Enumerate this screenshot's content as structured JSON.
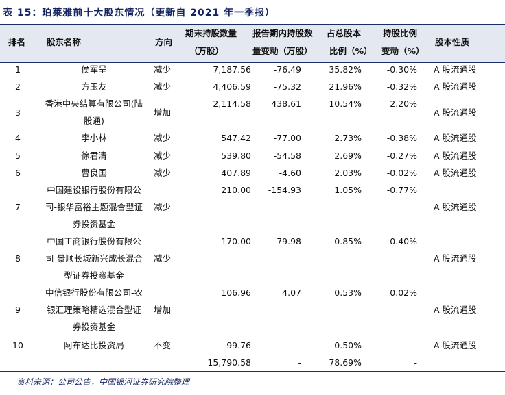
{
  "title": "表 15：珀莱雅前十大股东情况（更新自 2021 年一季报）",
  "headers": {
    "rank": "排名",
    "name": "股东名称",
    "direction": "方向",
    "qty_1": "期末持股数量",
    "qty_2": "（万股）",
    "chg_1": "报告期内持股数",
    "chg_2": "量变动（万股）",
    "pct_1": "占总股本",
    "pct_2": "比例（%）",
    "hchg_1": "持股比例",
    "hchg_2": "变动（%）",
    "type": "股本性质"
  },
  "rows": [
    {
      "rank": "1",
      "name": [
        "侯军呈"
      ],
      "direction": "减少",
      "qty": "7,187.56",
      "chg": "-76.49",
      "pct": "35.82%",
      "hchg": "-0.30%",
      "type": "A 股流通股"
    },
    {
      "rank": "2",
      "name": [
        "方玉友"
      ],
      "direction": "减少",
      "qty": "4,406.59",
      "chg": "-75.32",
      "pct": "21.96%",
      "hchg": "-0.32%",
      "type": "A 股流通股"
    },
    {
      "rank": "3",
      "name": [
        "香港中央结算有限公司(陆",
        "股通)"
      ],
      "direction": "增加",
      "qty": "2,114.58",
      "chg": "438.61",
      "pct": "10.54%",
      "hchg": "2.20%",
      "type": "A 股流通股"
    },
    {
      "rank": "4",
      "name": [
        "李小林"
      ],
      "direction": "减少",
      "qty": "547.42",
      "chg": "-77.00",
      "pct": "2.73%",
      "hchg": "-0.38%",
      "type": "A 股流通股"
    },
    {
      "rank": "5",
      "name": [
        "徐君清"
      ],
      "direction": "减少",
      "qty": "539.80",
      "chg": "-54.58",
      "pct": "2.69%",
      "hchg": "-0.27%",
      "type": "A 股流通股"
    },
    {
      "rank": "6",
      "name": [
        "曹良国"
      ],
      "direction": "减少",
      "qty": "407.89",
      "chg": "-4.60",
      "pct": "2.03%",
      "hchg": "-0.02%",
      "type": "A 股流通股"
    },
    {
      "rank": "7",
      "name": [
        "中国建设银行股份有限公",
        "司-银华富裕主题混合型证",
        "券投资基金"
      ],
      "direction": "减少",
      "qty": "210.00",
      "chg": "-154.93",
      "pct": "1.05%",
      "hchg": "-0.77%",
      "type": "A 股流通股"
    },
    {
      "rank": "8",
      "name": [
        "中国工商银行股份有限公",
        "司-景顺长城新兴成长混合",
        "型证券投资基金"
      ],
      "direction": "减少",
      "qty": "170.00",
      "chg": "-79.98",
      "pct": "0.85%",
      "hchg": "-0.40%",
      "type": "A 股流通股"
    },
    {
      "rank": "9",
      "name": [
        "中信银行股份有限公司-农",
        "银汇理策略精选混合型证",
        "券投资基金"
      ],
      "direction": "增加",
      "qty": "106.96",
      "chg": "4.07",
      "pct": "0.53%",
      "hchg": "0.02%",
      "type": "A 股流通股"
    },
    {
      "rank": "10",
      "name": [
        "阿布达比投资局"
      ],
      "direction": "不变",
      "qty": "99.76",
      "chg": "-",
      "pct": "0.50%",
      "hchg": "-",
      "type": "A 股流通股"
    }
  ],
  "total": {
    "qty": "15,790.58",
    "chg": "-",
    "pct": "78.69%",
    "hchg": "-"
  },
  "source": "资料来源：公司公告，中国银河证券研究院整理"
}
